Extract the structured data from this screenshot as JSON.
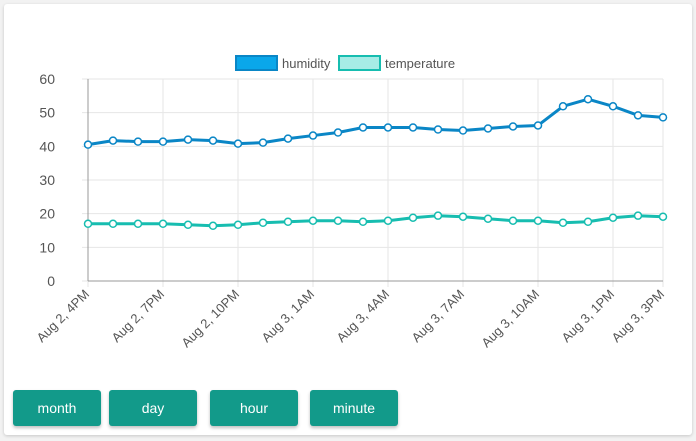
{
  "colors": {
    "humidity": "#0a86c6",
    "humidity_point_border": "#0a86c6",
    "temperature": "#17bdb0",
    "grid": "#e6e6e6",
    "axis_text": "#555555",
    "button_bg": "#129a8a"
  },
  "buttons": {
    "month": "month",
    "day": "day",
    "hour": "hour",
    "minute": "minute"
  },
  "chart_data": {
    "type": "line",
    "legend_position": "top",
    "grid": true,
    "ylim": [
      0,
      60
    ],
    "y_ticks": [
      "0",
      "10",
      "20",
      "30",
      "40",
      "50",
      "60"
    ],
    "x_tick_labels": [
      "Aug 2, 4PM",
      "Aug 2, 7PM",
      "Aug 2, 10PM",
      "Aug 3, 1AM",
      "Aug 3, 4AM",
      "Aug 3, 7AM",
      "Aug 3, 10AM",
      "Aug 3, 1PM",
      "Aug 3, 3PM"
    ],
    "x": [
      "Aug 2, 4PM",
      "Aug 2, 5PM",
      "Aug 2, 6PM",
      "Aug 2, 7PM",
      "Aug 2, 8PM",
      "Aug 2, 9PM",
      "Aug 2, 10PM",
      "Aug 2, 11PM",
      "Aug 3, 12AM",
      "Aug 3, 1AM",
      "Aug 3, 2AM",
      "Aug 3, 3AM",
      "Aug 3, 4AM",
      "Aug 3, 5AM",
      "Aug 3, 6AM",
      "Aug 3, 7AM",
      "Aug 3, 8AM",
      "Aug 3, 9AM",
      "Aug 3, 10AM",
      "Aug 3, 11AM",
      "Aug 3, 12PM",
      "Aug 3, 1PM",
      "Aug 3, 2PM",
      "Aug 3, 3PM"
    ],
    "series": [
      {
        "name": "humidity",
        "values": [
          40.5,
          41.7,
          41.4,
          41.4,
          42.0,
          41.7,
          40.8,
          41.1,
          42.3,
          43.2,
          44.1,
          45.6,
          45.6,
          45.6,
          45.0,
          44.7,
          45.3,
          45.9,
          46.2,
          51.9,
          54.0,
          51.9,
          49.2,
          48.6
        ]
      },
      {
        "name": "temperature",
        "values": [
          17.0,
          17.0,
          17.0,
          17.0,
          16.7,
          16.4,
          16.7,
          17.3,
          17.6,
          17.9,
          17.9,
          17.6,
          17.9,
          18.8,
          19.4,
          19.1,
          18.5,
          17.9,
          17.9,
          17.3,
          17.6,
          18.8,
          19.4,
          19.1
        ]
      }
    ]
  }
}
